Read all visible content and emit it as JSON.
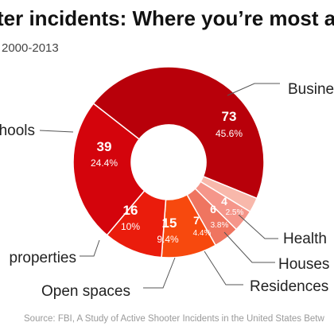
{
  "header": {
    "title": "ter incidents: Where you’re most at",
    "subtitle": "2000-2013"
  },
  "source": "Source: FBI, A Study of Active Shooter Incidents in the United States Betw",
  "chart_data": {
    "type": "pie",
    "title": "ter incidents: Where you’re most at",
    "subtitle": "2000-2013",
    "slices": [
      {
        "label": "Busine",
        "value": 73,
        "percent": "45.6%",
        "color": "#b8000a"
      },
      {
        "label": "Health",
        "value": 4,
        "percent": "2.5%",
        "color": "#f8b8ab"
      },
      {
        "label": "Houses",
        "value": 6,
        "percent": "3.8%",
        "color": "#f5968a"
      },
      {
        "label": "Residences",
        "value": 7,
        "percent": "4.4%",
        "color": "#ef7560"
      },
      {
        "label": "Open spaces",
        "value": 15,
        "percent": "9.4%",
        "color": "#f7490e"
      },
      {
        "label": "properties",
        "value": 16,
        "percent": "10%",
        "color": "#ea1c0c"
      },
      {
        "label": "hools",
        "value": 39,
        "percent": "24.4%",
        "color": "#d4040c"
      }
    ],
    "legend": "callout-labels"
  }
}
